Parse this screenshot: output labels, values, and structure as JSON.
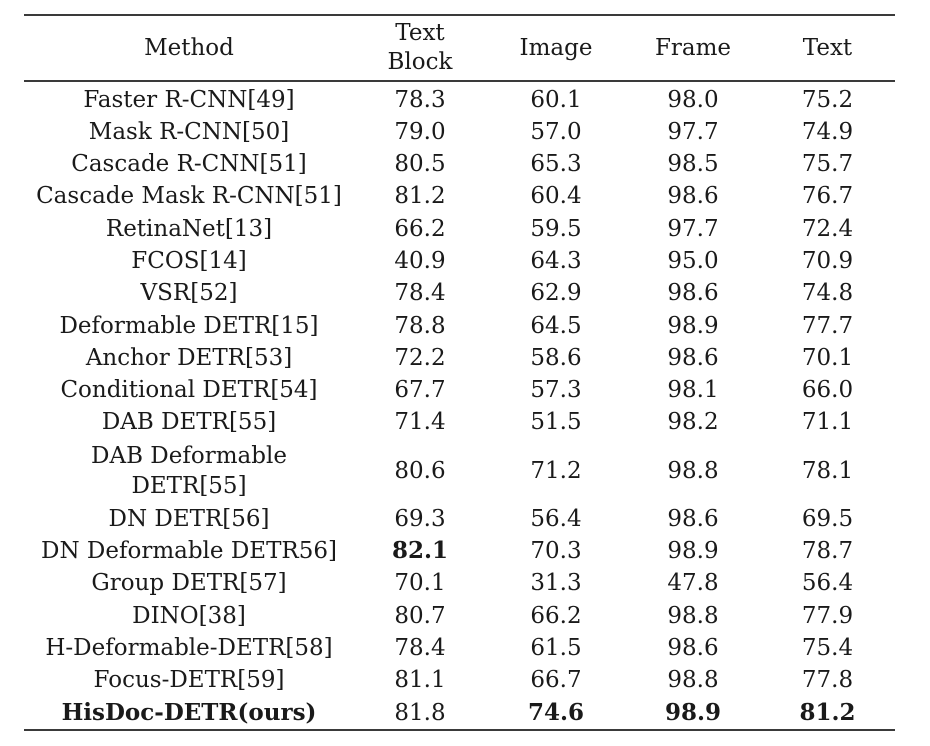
{
  "columns": {
    "method": "Method",
    "text_block_line1": "Text",
    "text_block_line2": "Block",
    "image": "Image",
    "frame": "Frame",
    "text": "Text"
  },
  "rows": [
    {
      "method": "Faster R-CNN[49]",
      "text_block": "78.3",
      "image": "60.1",
      "frame": "98.0",
      "text": "75.2"
    },
    {
      "method": "Mask R-CNN[50]",
      "text_block": "79.0",
      "image": "57.0",
      "frame": "97.7",
      "text": "74.9"
    },
    {
      "method": "Cascade R-CNN[51]",
      "text_block": "80.5",
      "image": "65.3",
      "frame": "98.5",
      "text": "75.7"
    },
    {
      "method": "Cascade Mask R-CNN[51]",
      "text_block": "81.2",
      "image": "60.4",
      "frame": "98.6",
      "text": "76.7"
    },
    {
      "method": "RetinaNet[13]",
      "text_block": "66.2",
      "image": "59.5",
      "frame": "97.7",
      "text": "72.4"
    },
    {
      "method": "FCOS[14]",
      "text_block": "40.9",
      "image": "64.3",
      "frame": "95.0",
      "text": "70.9"
    },
    {
      "method": "VSR[52]",
      "text_block": "78.4",
      "image": "62.9",
      "frame": "98.6",
      "text": "74.8"
    },
    {
      "method": "Deformable DETR[15]",
      "text_block": "78.8",
      "image": "64.5",
      "frame": "98.9",
      "text": "77.7"
    },
    {
      "method": "Anchor DETR[53]",
      "text_block": "72.2",
      "image": "58.6",
      "frame": "98.6",
      "text": "70.1"
    },
    {
      "method": "Conditional DETR[54]",
      "text_block": "67.7",
      "image": "57.3",
      "frame": "98.1",
      "text": "66.0"
    },
    {
      "method": "DAB DETR[55]",
      "text_block": "71.4",
      "image": "51.5",
      "frame": "98.2",
      "text": "71.1"
    },
    {
      "method_line1": "DAB Deformable",
      "method_line2": "DETR[55]",
      "text_block": "80.6",
      "image": "71.2",
      "frame": "98.8",
      "text": "78.1"
    },
    {
      "method": "DN DETR[56]",
      "text_block": "69.3",
      "image": "56.4",
      "frame": "98.6",
      "text": "69.5"
    },
    {
      "method": "DN Deformable DETR56]",
      "text_block": "82.1",
      "image": "70.3",
      "frame": "98.9",
      "text": "78.7"
    },
    {
      "method": "Group DETR[57]",
      "text_block": "70.1",
      "image": "31.3",
      "frame": "47.8",
      "text": "56.4"
    },
    {
      "method": "DINO[38]",
      "text_block": "80.7",
      "image": "66.2",
      "frame": "98.8",
      "text": "77.9"
    },
    {
      "method": "H-Deformable-DETR[58]",
      "text_block": "78.4",
      "image": "61.5",
      "frame": "98.6",
      "text": "75.4"
    },
    {
      "method": "Focus-DETR[59]",
      "text_block": "81.1",
      "image": "66.7",
      "frame": "98.8",
      "text": "77.8"
    },
    {
      "method": "HisDoc-DETR(ours)",
      "text_block": "81.8",
      "image": "74.6",
      "frame": "98.9",
      "text": "81.2"
    }
  ]
}
